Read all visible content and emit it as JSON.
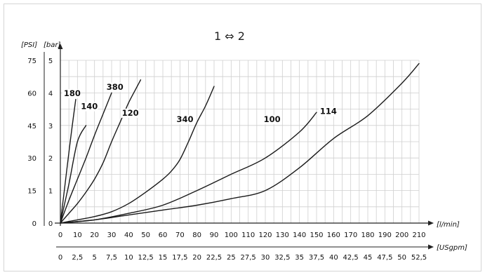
{
  "chart_data": {
    "type": "line",
    "title": "1 ⇔ 2",
    "y_axis_label_psi": "[PSI]",
    "y_axis_label_bar": "[bar]",
    "x_axis_label_lmin": "[l/min]",
    "x_axis_label_usgpm": "[USgpm]",
    "xlim": [
      0,
      210
    ],
    "ylim": [
      0,
      5
    ],
    "grid": true,
    "x_ticks_lmin": [
      "0",
      "10",
      "20",
      "30",
      "40",
      "50",
      "60",
      "70",
      "80",
      "90",
      "100",
      "110",
      "120",
      "130",
      "140",
      "150",
      "160",
      "170",
      "180",
      "190",
      "200",
      "210"
    ],
    "x_ticks_usgpm": [
      "0",
      "2,5",
      "5",
      "7,5",
      "10",
      "12,5",
      "15",
      "17,5",
      "20",
      "22,5",
      "25",
      "27,5",
      "30",
      "32,5",
      "35",
      "37,5",
      "40",
      "42,5",
      "45",
      "47,5",
      "50",
      "52,5"
    ],
    "y_ticks_bar": [
      "0",
      "1",
      "2",
      "3",
      "4",
      "5"
    ],
    "y_ticks_psi": [
      "0",
      "15",
      "30",
      "45",
      "60",
      "75"
    ],
    "series": [
      {
        "name": "180",
        "x": [
          0,
          3,
          6,
          9
        ],
        "y": [
          0,
          1.3,
          2.6,
          3.8
        ]
      },
      {
        "name": "140",
        "x": [
          0,
          5,
          10,
          15
        ],
        "y": [
          0,
          1.2,
          2.5,
          3.0
        ]
      },
      {
        "name": "380",
        "x": [
          0,
          5,
          10,
          15,
          20,
          25,
          30
        ],
        "y": [
          0,
          0.7,
          1.35,
          2.0,
          2.7,
          3.35,
          4.0
        ]
      },
      {
        "name": "120",
        "x": [
          0,
          5,
          10,
          15,
          20,
          25,
          30,
          35,
          40,
          45,
          47
        ],
        "y": [
          0,
          0.3,
          0.6,
          0.95,
          1.35,
          1.85,
          2.5,
          3.1,
          3.7,
          4.2,
          4.4
        ]
      },
      {
        "name": "340",
        "x": [
          0,
          10,
          20,
          30,
          40,
          50,
          60,
          65,
          70,
          75,
          80,
          85,
          90
        ],
        "y": [
          0,
          0.1,
          0.2,
          0.35,
          0.6,
          0.95,
          1.35,
          1.6,
          1.95,
          2.5,
          3.1,
          3.6,
          4.2
        ]
      },
      {
        "name": "100",
        "x": [
          0,
          20,
          40,
          60,
          80,
          100,
          120,
          140,
          150
        ],
        "y": [
          0,
          0.1,
          0.3,
          0.55,
          1.0,
          1.5,
          2.0,
          2.8,
          3.4
        ]
      },
      {
        "name": "114",
        "x": [
          0,
          20,
          40,
          60,
          80,
          100,
          120,
          140,
          160,
          180,
          200,
          210
        ],
        "y": [
          0,
          0.1,
          0.25,
          0.4,
          0.55,
          0.75,
          1.0,
          1.7,
          2.6,
          3.3,
          4.3,
          4.9
        ]
      }
    ],
    "series_label_positions": {
      "180": [
        2,
        3.9
      ],
      "140": [
        12,
        3.5
      ],
      "380": [
        27,
        4.1
      ],
      "120": [
        36,
        3.3
      ],
      "340": [
        68,
        3.1
      ],
      "100": [
        119,
        3.1
      ],
      "114": [
        152,
        3.35
      ]
    }
  }
}
